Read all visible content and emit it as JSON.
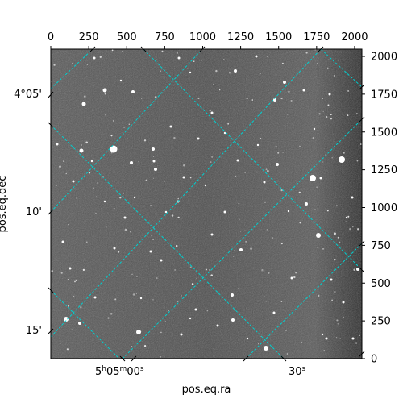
{
  "figure": {
    "x_axis_label": "pos.eq.ra",
    "y_axis_label": "pos.eq.dec",
    "grid_color": "#00d0d0",
    "image_colormap": "gray",
    "pixel_axis_top_ticks": [
      "0",
      "250",
      "500",
      "750",
      "1000",
      "1250",
      "1500",
      "1750",
      "2000"
    ],
    "pixel_axis_right_ticks": [
      "0",
      "250",
      "500",
      "750",
      "1000",
      "1250",
      "1500",
      "1750",
      "2000"
    ],
    "dec_ticks_left": [
      "4°05'",
      "10'",
      "15'"
    ],
    "ra_ticks_bottom": [
      {
        "main": "5",
        "h": "h",
        "m_val": "05",
        "m": "m",
        "s_val": "00",
        "s": "s"
      },
      {
        "main": "30",
        "h": "",
        "m_val": "",
        "m": "",
        "s_val": "",
        "s": "s"
      }
    ]
  }
}
